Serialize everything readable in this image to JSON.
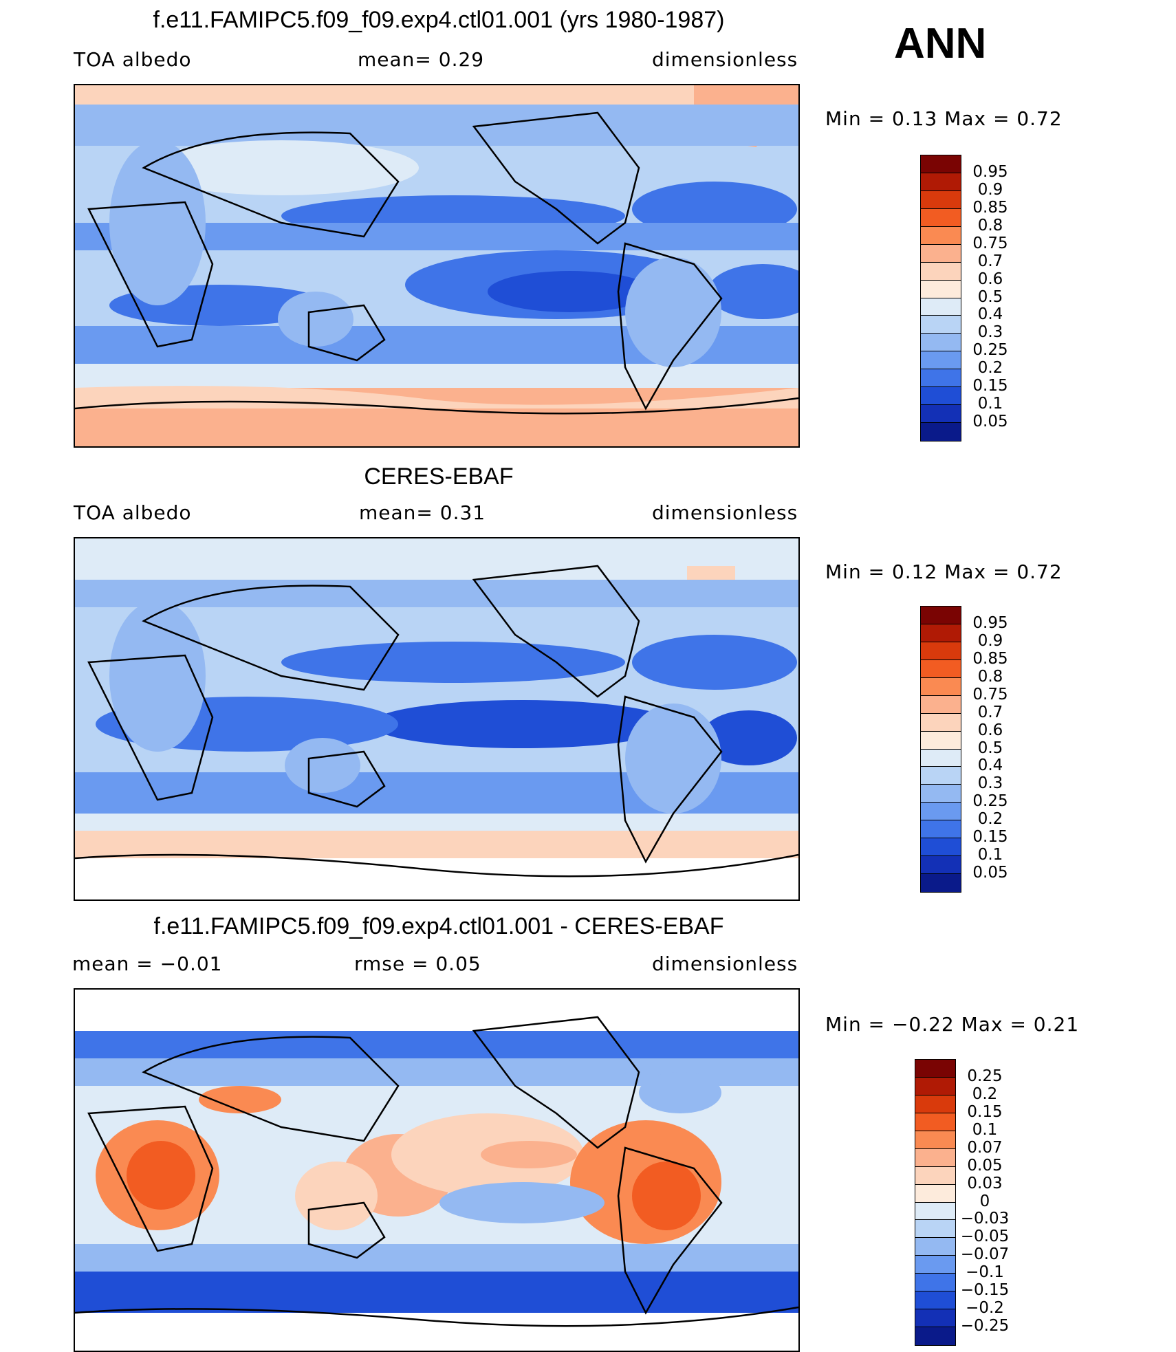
{
  "season": "ANN",
  "panels": [
    {
      "title": "f.e11.FAMIPC5.f09_f09.exp4.ctl01.001 (yrs 1980-1987)",
      "left_label": "TOA albedo",
      "center_label": "mean=    0.29",
      "right_label": "dimensionless",
      "minmax": "Min =    0.13  Max =    0.72",
      "colorbar_ticks": [
        "0.95",
        "0.9",
        "0.85",
        "0.8",
        "0.75",
        "0.7",
        "0.6",
        "0.5",
        "0.4",
        "0.3",
        "0.25",
        "0.2",
        "0.15",
        "0.1",
        "0.05"
      ]
    },
    {
      "title": "CERES-EBAF",
      "left_label": "TOA albedo",
      "center_label": "mean=    0.31",
      "right_label": "dimensionless",
      "minmax": "Min =    0.12  Max =    0.72",
      "colorbar_ticks": [
        "0.95",
        "0.9",
        "0.85",
        "0.8",
        "0.75",
        "0.7",
        "0.6",
        "0.5",
        "0.4",
        "0.3",
        "0.25",
        "0.2",
        "0.15",
        "0.1",
        "0.05"
      ]
    },
    {
      "title": "f.e11.FAMIPC5.f09_f09.exp4.ctl01.001 - CERES-EBAF",
      "left_label": "mean =   −0.01",
      "center_label": "rmse =    0.05",
      "right_label": "dimensionless",
      "minmax": "Min =   −0.22  Max =    0.21",
      "colorbar_ticks": [
        "0.25",
        "0.2",
        "0.15",
        "0.1",
        "0.07",
        "0.05",
        "0.03",
        "0",
        "−0.03",
        "−0.05",
        "−0.07",
        "−0.1",
        "−0.15",
        "−0.2",
        "−0.25"
      ]
    }
  ],
  "colors": {
    "seq": [
      "#7a0403",
      "#b01a05",
      "#d93a0c",
      "#f25c22",
      "#fa8a52",
      "#fbb18e",
      "#fcd4bc",
      "#fdebdc",
      "#deebf7",
      "#b9d4f5",
      "#94b9f2",
      "#6a9af0",
      "#3f74e8",
      "#1f4ed6",
      "#1330b6",
      "#0a1a8a"
    ],
    "div": [
      "#7a0403",
      "#b01a05",
      "#d93a0c",
      "#f25c22",
      "#fa8a52",
      "#fbb18e",
      "#fcd4bc",
      "#fdebdc",
      "#deebf7",
      "#b9d4f5",
      "#94b9f2",
      "#6a9af0",
      "#3f74e8",
      "#1f4ed6",
      "#1330b6",
      "#0a1a8a"
    ]
  }
}
